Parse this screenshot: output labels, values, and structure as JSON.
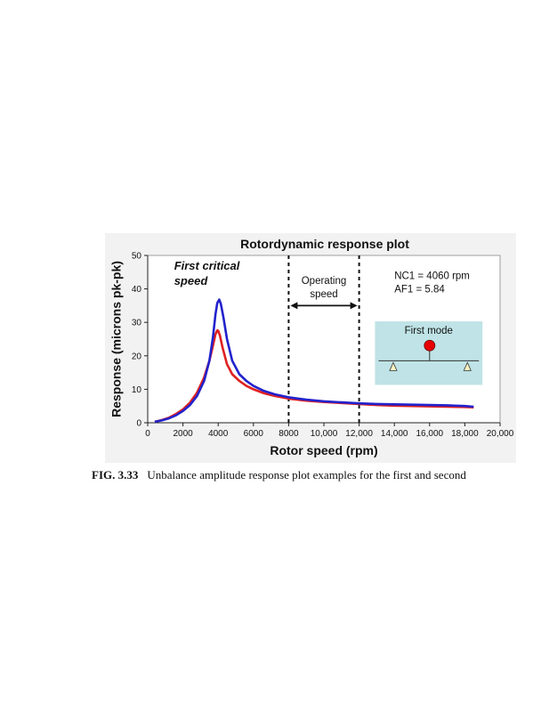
{
  "chart_data": {
    "type": "line",
    "title": "Rotordynamic response plot",
    "xlabel": "Rotor speed (rpm)",
    "ylabel": "Response (microns pk-pk)",
    "xlim": [
      0,
      20000
    ],
    "ylim": [
      0,
      50
    ],
    "xticks": [
      0,
      2000,
      4000,
      6000,
      8000,
      10000,
      12000,
      14000,
      16000,
      18000,
      20000
    ],
    "xtick_labels": [
      "0",
      "2000",
      "4000",
      "6000",
      "8000",
      "10,000",
      "12,000",
      "14,000",
      "16,000",
      "18,000",
      "20,000"
    ],
    "yticks": [
      0,
      10,
      20,
      30,
      40,
      50
    ],
    "ytick_labels": [
      "0",
      "10",
      "20",
      "30",
      "40",
      "50"
    ],
    "grid": false,
    "series": [
      {
        "color": "#e02020",
        "x": [
          400,
          800,
          1200,
          1600,
          2000,
          2400,
          2800,
          3200,
          3500,
          3700,
          3850,
          3950,
          4000,
          4100,
          4250,
          4500,
          4800,
          5200,
          5600,
          6000,
          6600,
          7200,
          8000,
          9000,
          10000,
          11000,
          12000,
          13000,
          14000,
          15000,
          16000,
          17000,
          18000,
          18500
        ],
        "y": [
          0.3,
          0.8,
          1.5,
          2.6,
          4.0,
          6.0,
          9.0,
          13.5,
          18.5,
          23.0,
          26.5,
          27.6,
          27.5,
          26.0,
          22.5,
          17.5,
          14.5,
          12.5,
          11.0,
          10.0,
          8.8,
          8.0,
          7.2,
          6.6,
          6.2,
          5.9,
          5.6,
          5.3,
          5.1,
          5.0,
          4.9,
          4.8,
          4.7,
          4.6
        ]
      },
      {
        "color": "#2222cc",
        "x": [
          400,
          800,
          1200,
          1600,
          2000,
          2400,
          2800,
          3200,
          3500,
          3700,
          3850,
          3950,
          4060,
          4150,
          4300,
          4500,
          4800,
          5200,
          5600,
          6000,
          6600,
          7200,
          8000,
          9000,
          10000,
          11000,
          12000,
          13000,
          14000,
          15000,
          16000,
          17000,
          18000,
          18500
        ],
        "y": [
          0.3,
          0.7,
          1.3,
          2.2,
          3.5,
          5.3,
          8.0,
          12.5,
          18.5,
          25.5,
          32.5,
          35.8,
          36.8,
          35.5,
          31.5,
          25.0,
          18.5,
          14.5,
          12.5,
          11.0,
          9.5,
          8.5,
          7.6,
          6.9,
          6.4,
          6.1,
          5.8,
          5.6,
          5.5,
          5.4,
          5.3,
          5.2,
          5.0,
          4.8
        ]
      }
    ],
    "vlines": [
      8000,
      12000
    ],
    "annotations": {
      "critical_line1": "First critical",
      "critical_line2": "speed",
      "operating_line1": "Operating",
      "operating_line2": "speed",
      "nc1": "NC1 = 4060 rpm",
      "af1": "AF1 = 5.84"
    },
    "inset": {
      "title": "First mode",
      "background": "#bfe3e6"
    }
  },
  "caption": {
    "figure_number": "FIG. 3.33",
    "text": "Unbalance amplitude response plot examples for the first and second"
  },
  "colors": {
    "plot_background": "#ffffff",
    "figure_background": "#f2f2f2",
    "mass_marker": "#e60000"
  }
}
